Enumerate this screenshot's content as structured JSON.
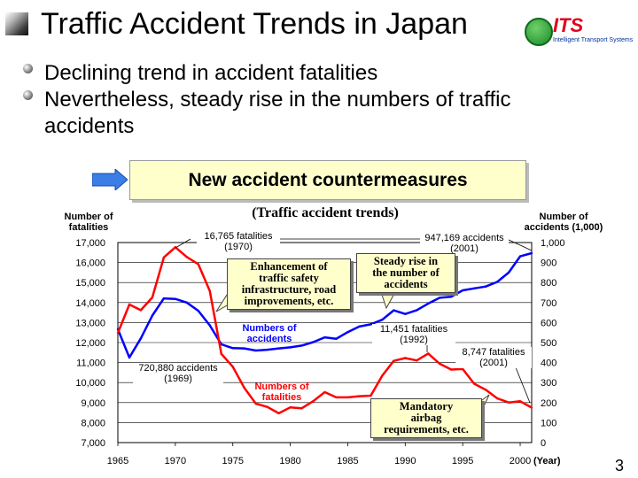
{
  "title": "Traffic Accident Trends in Japan",
  "logo": {
    "text": "ITS",
    "sub": "Intelligent Transport Systems"
  },
  "bullets": [
    "Declining trend in accident fatalities",
    "Nevertheless, steady rise in the numbers of traffic",
    "accidents"
  ],
  "banner": "New accident countermeasures",
  "page_number": "3",
  "chart_data": {
    "type": "line",
    "title": "(Traffic accident trends)",
    "y_left_label": [
      "Number of",
      "fatalities"
    ],
    "y_right_label": [
      "Number of",
      "accidents (1,000)"
    ],
    "x_unit": "(Year)",
    "xlim": [
      1965,
      2001
    ],
    "ylim_left": [
      7000,
      17000
    ],
    "ylim_right": [
      0,
      1000
    ],
    "x_ticks": [
      1965,
      1970,
      1975,
      1980,
      1985,
      1990,
      1995,
      2000
    ],
    "y_left_ticks": [
      "7,000",
      "8,000",
      "9,000",
      "10,000",
      "11,000",
      "12,000",
      "13,000",
      "14,000",
      "15,000",
      "16,000",
      "17,000"
    ],
    "y_right_ticks": [
      "0",
      "100",
      "200",
      "300",
      "400",
      "500",
      "600",
      "700",
      "800",
      "900",
      "1,000"
    ],
    "grid": true,
    "series": [
      {
        "name": "Numbers of accidents",
        "axis": "right",
        "color": "#0000ff",
        "x": [
          1965,
          1966,
          1967,
          1968,
          1969,
          1970,
          1971,
          1972,
          1973,
          1974,
          1975,
          1976,
          1977,
          1978,
          1979,
          1980,
          1981,
          1982,
          1983,
          1984,
          1985,
          1986,
          1987,
          1988,
          1989,
          1990,
          1991,
          1992,
          1993,
          1994,
          1995,
          1996,
          1997,
          1998,
          1999,
          2000,
          2001
        ],
        "values": [
          567,
          425,
          521,
          635,
          721,
          718,
          700,
          659,
          586,
          491,
          472,
          471,
          460,
          464,
          471,
          476,
          485,
          502,
          526,
          519,
          552,
          580,
          591,
          614,
          661,
          643,
          662,
          695,
          724,
          729,
          761,
          771,
          780,
          803,
          850,
          931,
          947
        ]
      },
      {
        "name": "Numbers of fatalities",
        "axis": "left",
        "color": "#ff0000",
        "x": [
          1965,
          1966,
          1967,
          1968,
          1969,
          1970,
          1971,
          1972,
          1973,
          1974,
          1975,
          1976,
          1977,
          1978,
          1979,
          1980,
          1981,
          1982,
          1983,
          1984,
          1985,
          1986,
          1987,
          1988,
          1989,
          1990,
          1991,
          1992,
          1993,
          1994,
          1995,
          1996,
          1997,
          1998,
          1999,
          2000,
          2001
        ],
        "values": [
          12484,
          13904,
          13618,
          14256,
          16257,
          16765,
          16278,
          15918,
          14574,
          11432,
          10792,
          9734,
          8945,
          8783,
          8466,
          8760,
          8719,
          9073,
          9520,
          9262,
          9261,
          9317,
          9347,
          10344,
          11086,
          11227,
          11105,
          11451,
          10942,
          10649,
          10679,
          9942,
          9640,
          9211,
          9006,
          9066,
          8747
        ]
      }
    ],
    "annotations": [
      {
        "lines": [
          "16,765 fatalities",
          "(1970)"
        ]
      },
      {
        "lines": [
          "947,169 accidents",
          "(2001)"
        ]
      },
      {
        "lines": [
          "720,880 accidents",
          "(1969)"
        ]
      },
      {
        "lines": [
          "11,451 fatalities",
          "(1992)"
        ]
      },
      {
        "lines": [
          "8,747 fatalities",
          "(2001)"
        ]
      }
    ],
    "series_labels": [
      {
        "lines": [
          "Numbers of",
          "accidents"
        ],
        "color": "#0000ff"
      },
      {
        "lines": [
          "Numbers of",
          "fatalities"
        ],
        "color": "#ff0000"
      }
    ],
    "callouts": [
      {
        "lines": [
          "Enhancement of",
          "traffic safety",
          "infrastructure, road",
          "improvements, etc."
        ]
      },
      {
        "lines": [
          "Steady rise in",
          "the number of",
          "accidents"
        ]
      },
      {
        "lines": [
          "Mandatory",
          "airbag",
          "requirements, etc."
        ]
      }
    ]
  }
}
